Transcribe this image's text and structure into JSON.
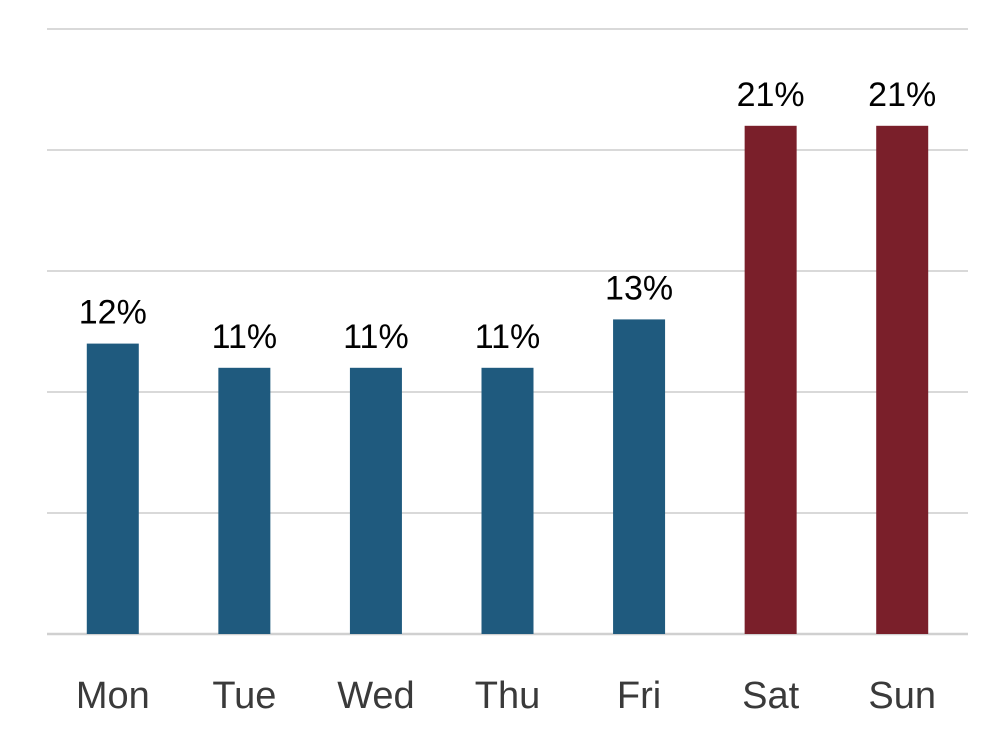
{
  "chart_data": {
    "type": "bar",
    "title": "",
    "xlabel": "",
    "ylabel": "",
    "categories": [
      "Mon",
      "Tue",
      "Wed",
      "Thu",
      "Fri",
      "Sat",
      "Sun"
    ],
    "values": [
      12,
      11,
      11,
      11,
      13,
      21,
      21
    ],
    "data_labels": [
      "12%",
      "11%",
      "11%",
      "11%",
      "13%",
      "21%",
      "21%"
    ],
    "ylim": [
      0,
      25
    ],
    "gridlines": [
      0,
      5,
      10,
      15,
      20,
      25
    ],
    "grid": true,
    "legend": "none",
    "colors": [
      "#1f5a7e",
      "#1f5a7e",
      "#1f5a7e",
      "#1f5a7e",
      "#1f5a7e",
      "#7a1f2a",
      "#7a1f2a"
    ]
  }
}
